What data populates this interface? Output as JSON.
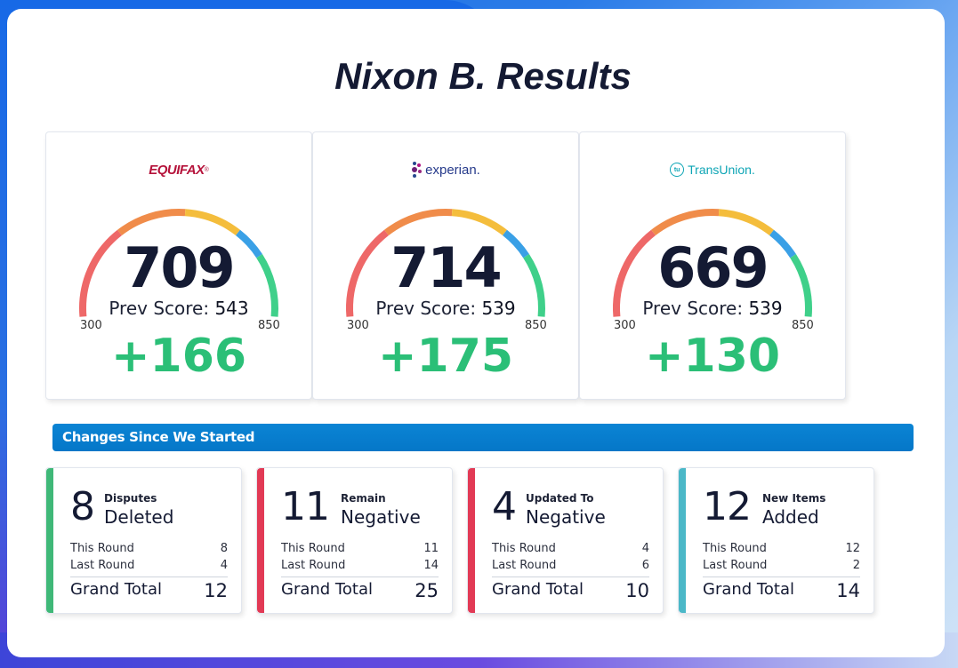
{
  "title": "Nixon B. Results",
  "gauge_colors": [
    "#ee6868",
    "#f08c4a",
    "#f4bd3c",
    "#3aa0e6",
    "#3fd08a"
  ],
  "bureaus": [
    {
      "logo": "EQUIFAX",
      "logo_mark": "®",
      "score": "709",
      "prev_label": "Prev Score:",
      "prev": "543",
      "min": "300",
      "max": "850",
      "change": "+166"
    },
    {
      "logo": "experian.",
      "score": "714",
      "prev_label": "Prev Score:",
      "prev": "539",
      "min": "300",
      "max": "850",
      "change": "+175"
    },
    {
      "logo": "TransUnion.",
      "logo_mark": "tu",
      "score": "669",
      "prev_label": "Prev Score:",
      "prev": "539",
      "min": "300",
      "max": "850",
      "change": "+130"
    }
  ],
  "section_title": "Changes Since We Started",
  "stats": [
    {
      "big": "8",
      "small": "Disputes",
      "label": "Deleted",
      "accent": "#3fb878",
      "this_round_label": "This Round",
      "this_round": "8",
      "last_round_label": "Last Round",
      "last_round": "4",
      "grand_label": "Grand Total",
      "grand": "12"
    },
    {
      "big": "11",
      "small": "Remain",
      "label": "Negative",
      "accent": "#e23a55",
      "this_round_label": "This Round",
      "this_round": "11",
      "last_round_label": "Last Round",
      "last_round": "14",
      "grand_label": "Grand Total",
      "grand": "25"
    },
    {
      "big": "4",
      "small": "Updated To",
      "label": "Negative",
      "accent": "#e23a55",
      "this_round_label": "This Round",
      "this_round": "4",
      "last_round_label": "Last Round",
      "last_round": "6",
      "grand_label": "Grand Total",
      "grand": "10"
    },
    {
      "big": "12",
      "small": "New Items",
      "label": "Added",
      "accent": "#4bb8c8",
      "this_round_label": "This Round",
      "this_round": "12",
      "last_round_label": "Last Round",
      "last_round": "2",
      "grand_label": "Grand Total",
      "grand": "14"
    }
  ]
}
